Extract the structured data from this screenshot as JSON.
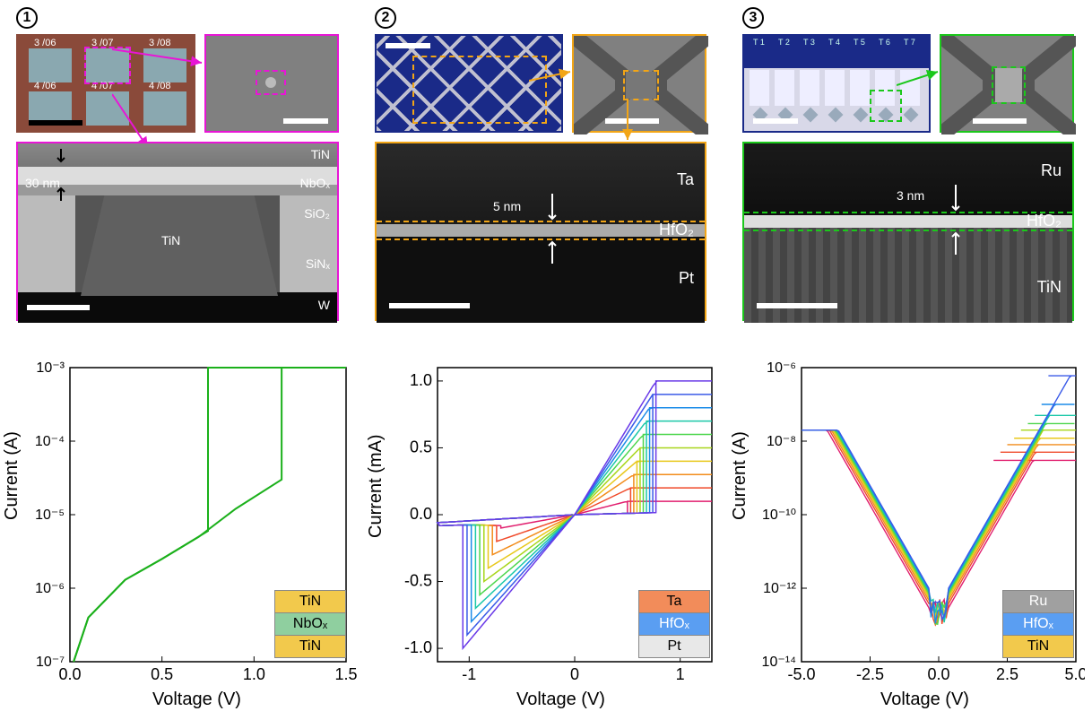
{
  "figure": {
    "panels": [
      "1",
      "2",
      "3"
    ],
    "panel1": {
      "border_color": "#e815d6",
      "optical_labels": [
        "3 /06",
        "3 /07",
        "3 /08",
        "4 /06",
        "4 /07",
        "4 /08"
      ],
      "tem_labels": [
        "TiN",
        "NbOₓ",
        "SiO₂",
        "TiN",
        "SiNₓ",
        "W"
      ],
      "thickness_label": "30 nm",
      "chart": {
        "type": "line-logy",
        "xlabel": "Voltage (V)",
        "ylabel": "Current (A)",
        "xlim": [
          0.0,
          1.5
        ],
        "xtick_step": 0.5,
        "ylim": [
          1e-07,
          0.001
        ],
        "yticks": [
          "10⁻⁷",
          "10⁻⁶",
          "10⁻⁵",
          "10⁻⁴",
          "10⁻³"
        ],
        "line_color": "#1bb01b",
        "background_color": "#ffffff",
        "legend": [
          {
            "label": "TiN",
            "bg": "#f2c94c"
          },
          {
            "label": "NbOₓ",
            "bg": "#8fcf9f"
          },
          {
            "label": "TiN",
            "bg": "#f2c94c"
          }
        ],
        "series_up": [
          [
            0.02,
            1e-07
          ],
          [
            0.1,
            4e-07
          ],
          [
            0.3,
            1.3e-06
          ],
          [
            0.5,
            2.5e-06
          ],
          [
            0.7,
            5e-06
          ],
          [
            0.9,
            1.2e-05
          ],
          [
            1.15,
            3e-05
          ],
          [
            1.15,
            0.001
          ],
          [
            1.5,
            0.001
          ]
        ],
        "series_down": [
          [
            1.5,
            0.001
          ],
          [
            0.75,
            0.001
          ],
          [
            0.75,
            6e-06
          ],
          [
            0.5,
            2.5e-06
          ],
          [
            0.3,
            1.3e-06
          ],
          [
            0.1,
            4e-07
          ],
          [
            0.02,
            1e-07
          ]
        ]
      }
    },
    "panel2": {
      "border_color": "#f2a516",
      "thickness_label": "5 nm",
      "tem_labels": [
        "Ta",
        "HfO₂",
        "Pt"
      ],
      "chart": {
        "type": "line-linear",
        "xlabel": "Voltage (V)",
        "ylabel": "Current (mA)",
        "xlim": [
          -1.3,
          1.3
        ],
        "xticks": [
          -1,
          0,
          1
        ],
        "ylim": [
          -1.1,
          1.1
        ],
        "yticks": [
          -1.0,
          -0.5,
          0.0,
          0.5,
          1.0
        ],
        "background_color": "#ffffff",
        "series_colors": [
          "#e11e6e",
          "#f04a2a",
          "#f28c1b",
          "#e8c81b",
          "#a8d61b",
          "#4cd64c",
          "#1bc8a8",
          "#1b8ce8",
          "#3a5ae8",
          "#6a3ae8"
        ],
        "compliances": [
          0.1,
          0.2,
          0.3,
          0.4,
          0.5,
          0.6,
          0.7,
          0.8,
          0.9,
          1.0
        ],
        "legend": [
          {
            "label": "Ta",
            "bg": "#f28c5a"
          },
          {
            "label": "HfOₓ",
            "bg": "#5a9ef2"
          },
          {
            "label": "Pt",
            "bg": "#e8e8e8"
          }
        ]
      }
    },
    "panel3": {
      "border_color": "#1bc81b",
      "top_labels": [
        "T 1",
        "T 2",
        "T 3",
        "T 4",
        "T 5",
        "T 6",
        "T 7"
      ],
      "thickness_label": "3 nm",
      "tem_labels": [
        "Ru",
        "HfO₂",
        "TiN"
      ],
      "chart": {
        "type": "line-logy",
        "xlabel": "Voltage (V)",
        "ylabel": "Current (A)",
        "xlim": [
          -5.0,
          5.0
        ],
        "xticks": [
          -5.0,
          -2.5,
          0.0,
          2.5,
          5.0
        ],
        "ylim": [
          1e-14,
          1e-06
        ],
        "yticks": [
          "10⁻¹⁴",
          "10⁻¹²",
          "10⁻¹⁰",
          "10⁻⁸",
          "10⁻⁶"
        ],
        "background_color": "#ffffff",
        "series_colors": [
          "#e11e6e",
          "#f04a2a",
          "#f28c1b",
          "#e8c81b",
          "#a8d61b",
          "#4cd64c",
          "#1bc8a8",
          "#1b8ce8",
          "#3a5ae8"
        ],
        "compliances": [
          3e-09,
          5e-09,
          8e-09,
          1.2e-08,
          2e-08,
          3e-08,
          5e-08,
          1e-07,
          6e-07
        ],
        "legend": [
          {
            "label": "Ru",
            "bg": "#a0a0a0"
          },
          {
            "label": "HfOₓ",
            "bg": "#5a9ef2"
          },
          {
            "label": "TiN",
            "bg": "#f2c94c"
          }
        ]
      }
    }
  }
}
